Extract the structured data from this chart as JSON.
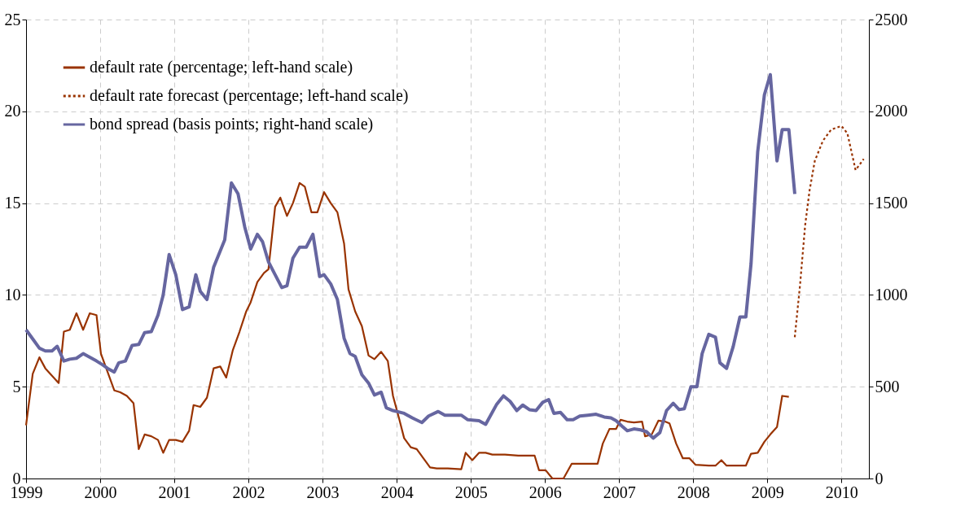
{
  "chart_data": {
    "type": "line",
    "xlim": [
      1999,
      2010.37
    ],
    "xticks": [
      1999,
      2000,
      2001,
      2002,
      2003,
      2004,
      2005,
      2006,
      2007,
      2008,
      2009,
      2010
    ],
    "ylim": [
      0,
      25
    ],
    "yticks": [
      0,
      5,
      10,
      15,
      20,
      25
    ],
    "y2lim": [
      0,
      2500
    ],
    "y2ticks": [
      0,
      500,
      1000,
      1500,
      2000,
      2500
    ],
    "grid": true,
    "legend": "top left",
    "series": [
      {
        "name": "default rate (percentage; left-hand scale)",
        "color": "#993300",
        "line_style": "solid",
        "x": [
          1999.0,
          1999.09,
          1999.18,
          1999.26,
          1999.35,
          1999.44,
          1999.51,
          1999.59,
          1999.68,
          1999.77,
          1999.86,
          1999.95,
          2000.01,
          2000.1,
          2000.19,
          2000.27,
          2000.36,
          2000.45,
          2000.52,
          2000.6,
          2000.69,
          2000.78,
          2000.85,
          2000.93,
          2001.02,
          2001.11,
          2001.2,
          2001.26,
          2001.35,
          2001.44,
          2001.53,
          2001.62,
          2001.7,
          2001.79,
          2001.88,
          2001.97,
          2002.03,
          2002.12,
          2002.21,
          2002.27,
          2002.36,
          2002.43,
          2002.52,
          2002.6,
          2002.69,
          2002.76,
          2002.85,
          2002.93,
          2003.02,
          2003.11,
          2003.2,
          2003.29,
          2003.35,
          2003.44,
          2003.53,
          2003.62,
          2003.7,
          2003.79,
          2003.88,
          2003.95,
          2004.03,
          2004.1,
          2004.19,
          2004.27,
          2004.36,
          2004.45,
          2004.54,
          2004.69,
          2004.87,
          2004.93,
          2005.02,
          2005.11,
          2005.2,
          2005.29,
          2005.46,
          2005.64,
          2005.86,
          2005.92,
          2006.01,
          2006.1,
          2006.25,
          2006.36,
          2006.58,
          2006.71,
          2006.78,
          2006.87,
          2006.96,
          2007.02,
          2007.11,
          2007.2,
          2007.31,
          2007.35,
          2007.44,
          2007.53,
          2007.62,
          2007.68,
          2007.77,
          2007.86,
          2007.95,
          2008.03,
          2008.21,
          2008.3,
          2008.38,
          2008.45,
          2008.65,
          2008.71,
          2008.78,
          2008.87,
          2008.96,
          2009.04,
          2009.13,
          2009.2,
          2009.29
        ],
        "values": [
          2.9,
          5.7,
          6.6,
          6.0,
          5.6,
          5.2,
          8.0,
          8.1,
          9.0,
          8.1,
          9.0,
          8.9,
          6.8,
          5.8,
          4.8,
          4.7,
          4.5,
          4.1,
          1.6,
          2.4,
          2.3,
          2.1,
          1.4,
          2.1,
          2.1,
          2.0,
          2.6,
          4.0,
          3.9,
          4.4,
          6.0,
          6.1,
          5.5,
          7.0,
          8.0,
          9.1,
          9.6,
          10.7,
          11.2,
          11.4,
          14.8,
          15.3,
          14.3,
          15.0,
          16.1,
          15.9,
          14.5,
          14.5,
          15.6,
          15.0,
          14.5,
          12.8,
          10.3,
          9.1,
          8.3,
          6.7,
          6.5,
          6.9,
          6.4,
          4.5,
          3.3,
          2.2,
          1.7,
          1.6,
          1.1,
          0.6,
          0.55,
          0.55,
          0.5,
          1.4,
          1.0,
          1.4,
          1.4,
          1.3,
          1.3,
          1.25,
          1.25,
          0.45,
          0.45,
          0.0,
          0.0,
          0.8,
          0.8,
          0.8,
          1.9,
          2.7,
          2.7,
          3.2,
          3.1,
          3.05,
          3.1,
          2.3,
          2.4,
          3.15,
          3.1,
          3.0,
          1.9,
          1.1,
          1.1,
          0.75,
          0.7,
          0.7,
          1.0,
          0.7,
          0.7,
          0.7,
          1.35,
          1.4,
          2.0,
          2.4,
          2.8,
          4.5,
          4.45
        ]
      },
      {
        "name": "default rate forecast (percentage; left-hand scale)",
        "color": "#993300",
        "line_style": "dotted",
        "x": [
          2009.37,
          2009.44,
          2009.51,
          2009.57,
          2009.64,
          2009.75,
          2009.86,
          2010.0,
          2010.08,
          2010.19,
          2010.3
        ],
        "values": [
          7.7,
          10.5,
          13.8,
          15.7,
          17.3,
          18.4,
          19.0,
          19.2,
          18.8,
          16.8,
          17.4
        ]
      },
      {
        "name": "bond spread (basis points; right-hand scale)",
        "color": "#6666a0",
        "line_style": "solid",
        "axis": "y2",
        "x": [
          1999.0,
          1999.09,
          1999.18,
          1999.26,
          1999.35,
          1999.42,
          1999.51,
          1999.59,
          1999.68,
          1999.77,
          1999.86,
          1999.95,
          2000.03,
          2000.1,
          2000.19,
          2000.25,
          2000.34,
          2000.43,
          2000.52,
          2000.6,
          2000.69,
          2000.78,
          2000.85,
          2000.93,
          2001.02,
          2001.11,
          2001.2,
          2001.29,
          2001.35,
          2001.44,
          2001.53,
          2001.62,
          2001.68,
          2001.77,
          2001.86,
          2001.95,
          2002.03,
          2002.12,
          2002.19,
          2002.27,
          2002.36,
          2002.45,
          2002.52,
          2002.6,
          2002.69,
          2002.78,
          2002.87,
          2002.96,
          2003.02,
          2003.11,
          2003.2,
          2003.29,
          2003.37,
          2003.44,
          2003.53,
          2003.62,
          2003.7,
          2003.79,
          2003.86,
          2003.95,
          2004.1,
          2004.21,
          2004.34,
          2004.43,
          2004.56,
          2004.65,
          2004.87,
          2004.96,
          2005.11,
          2005.2,
          2005.35,
          2005.44,
          2005.53,
          2005.62,
          2005.7,
          2005.79,
          2005.88,
          2005.97,
          2006.05,
          2006.12,
          2006.21,
          2006.3,
          2006.38,
          2006.47,
          2006.58,
          2006.69,
          2006.8,
          2006.89,
          2006.96,
          2007.04,
          2007.11,
          2007.2,
          2007.29,
          2007.37,
          2007.46,
          2007.55,
          2007.64,
          2007.73,
          2007.81,
          2007.88,
          2007.97,
          2008.05,
          2008.12,
          2008.21,
          2008.3,
          2008.36,
          2008.45,
          2008.54,
          2008.63,
          2008.71,
          2008.78,
          2008.87,
          2008.96,
          2009.04,
          2009.13,
          2009.2,
          2009.29,
          2009.37
        ],
        "values": [
          810,
          760,
          710,
          695,
          695,
          720,
          640,
          650,
          655,
          680,
          660,
          640,
          620,
          600,
          580,
          630,
          640,
          725,
          730,
          795,
          800,
          890,
          1000,
          1220,
          1110,
          920,
          935,
          1110,
          1020,
          975,
          1150,
          1240,
          1300,
          1610,
          1550,
          1370,
          1250,
          1330,
          1290,
          1180,
          1110,
          1040,
          1050,
          1200,
          1260,
          1260,
          1330,
          1100,
          1110,
          1060,
          975,
          765,
          680,
          665,
          565,
          520,
          455,
          470,
          385,
          370,
          355,
          330,
          305,
          340,
          365,
          345,
          345,
          320,
          315,
          295,
          405,
          450,
          420,
          370,
          400,
          375,
          370,
          415,
          430,
          355,
          360,
          320,
          320,
          340,
          345,
          350,
          335,
          330,
          315,
          285,
          260,
          270,
          265,
          255,
          220,
          250,
          370,
          410,
          375,
          380,
          500,
          500,
          680,
          785,
          770,
          630,
          600,
          720,
          880,
          880,
          1170,
          1780,
          2090,
          2200,
          1730,
          1900,
          1900,
          1550
        ]
      }
    ]
  }
}
